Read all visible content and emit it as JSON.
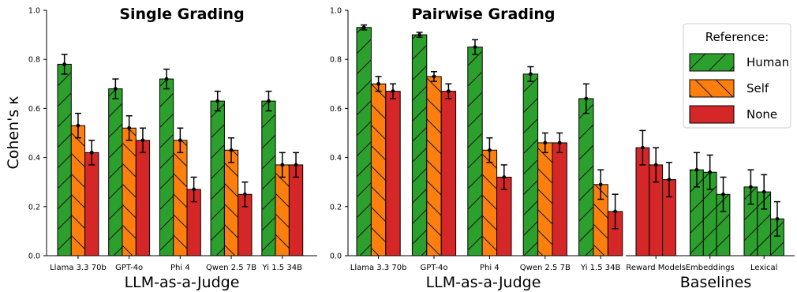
{
  "y_axis_label": "Cohen's κ",
  "legend": {
    "title": "Reference:",
    "items": [
      {
        "name": "Human",
        "color": "#2ca02c",
        "hatch": "/"
      },
      {
        "name": "Self",
        "color": "#ff7f0e",
        "hatch": "\\"
      },
      {
        "name": "None",
        "color": "#d62728",
        "hatch": ""
      }
    ]
  },
  "chart_data": [
    {
      "type": "bar",
      "title": "Single Grading",
      "xlabel": "LLM-as-a-Judge",
      "ylabel": "Cohen's κ",
      "ylim": [
        0,
        1.0
      ],
      "yticks": [
        "0.0",
        "0.2",
        "0.4",
        "0.6",
        "0.8",
        "1.0"
      ],
      "categories": [
        "Llama 3.3 70b",
        "GPT-4o",
        "Phi 4",
        "Qwen 2.5 7B",
        "Yi 1.5 34B"
      ],
      "series": [
        {
          "name": "Human",
          "values": [
            0.78,
            0.68,
            0.72,
            0.63,
            0.63
          ],
          "errors": [
            0.04,
            0.04,
            0.04,
            0.04,
            0.04
          ]
        },
        {
          "name": "Self",
          "values": [
            0.53,
            0.52,
            0.47,
            0.43,
            0.37
          ],
          "errors": [
            0.05,
            0.05,
            0.05,
            0.05,
            0.05
          ]
        },
        {
          "name": "None",
          "values": [
            0.42,
            0.47,
            0.27,
            0.25,
            0.37
          ],
          "errors": [
            0.05,
            0.05,
            0.05,
            0.05,
            0.05
          ]
        }
      ]
    },
    {
      "type": "bar",
      "title": "Pairwise Grading",
      "xlabel": "LLM-as-a-Judge",
      "ylim": [
        0,
        1.0
      ],
      "yticks": [
        "0.0",
        "0.2",
        "0.4",
        "0.6",
        "0.8",
        "1.0"
      ],
      "categories": [
        "Llama 3.3 70b",
        "GPT-4o",
        "Phi 4",
        "Qwen 2.5 7B",
        "Yi 1.5 34B"
      ],
      "series": [
        {
          "name": "Human",
          "values": [
            0.93,
            0.9,
            0.85,
            0.74,
            0.64
          ],
          "errors": [
            0.01,
            0.01,
            0.03,
            0.03,
            0.06
          ]
        },
        {
          "name": "Self",
          "values": [
            0.7,
            0.73,
            0.43,
            0.46,
            0.29
          ],
          "errors": [
            0.03,
            0.02,
            0.05,
            0.04,
            0.06
          ]
        },
        {
          "name": "None",
          "values": [
            0.67,
            0.67,
            0.32,
            0.46,
            0.18
          ],
          "errors": [
            0.03,
            0.03,
            0.05,
            0.04,
            0.07
          ]
        }
      ]
    },
    {
      "type": "bar",
      "title": "",
      "xlabel": "Baselines",
      "ylim": [
        0,
        1.0
      ],
      "categories": [
        "Reward Models",
        "Embeddings",
        "Lexical"
      ],
      "groups": [
        {
          "category": "Reward Models",
          "reference": "None",
          "values": [
            0.44,
            0.37,
            0.31
          ],
          "errors": [
            0.07,
            0.07,
            0.07
          ]
        },
        {
          "category": "Embeddings",
          "reference": "Human",
          "values": [
            0.35,
            0.34,
            0.25
          ],
          "errors": [
            0.07,
            0.07,
            0.07
          ]
        },
        {
          "category": "Lexical",
          "reference": "Human",
          "values": [
            0.28,
            0.26,
            0.15
          ],
          "errors": [
            0.07,
            0.07,
            0.07
          ]
        }
      ]
    }
  ]
}
